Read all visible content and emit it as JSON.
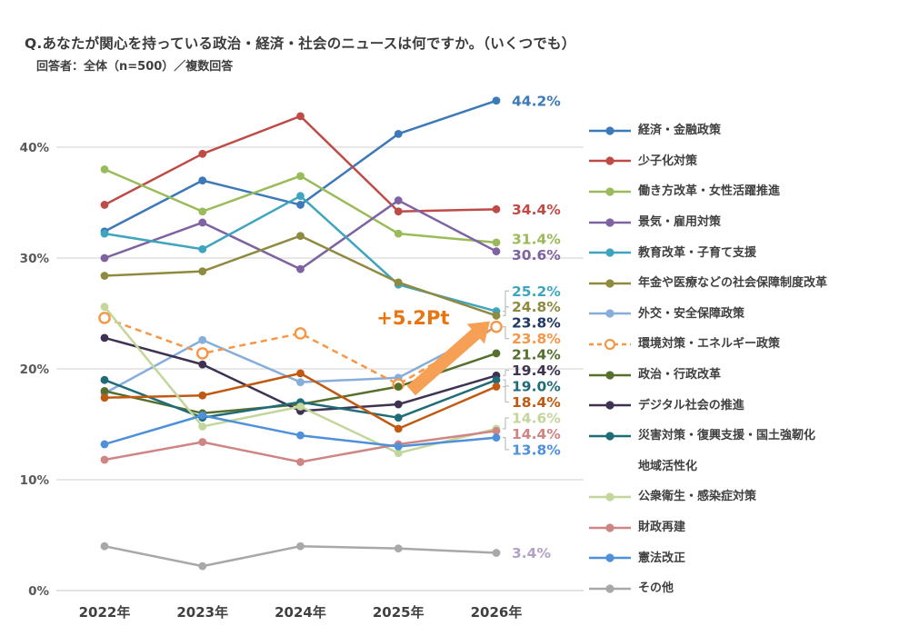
{
  "header": {
    "title": "Q.あなたが関心を持っている政治・経済・社会のニュースは何ですか。（いくつでも）",
    "subtitle": "回答者：全体（n=500）／複数回答"
  },
  "chart_data": {
    "type": "line",
    "x": [
      "2022年",
      "2023年",
      "2024年",
      "2025年",
      "2026年"
    ],
    "y_ticks": [
      0,
      10,
      20,
      30,
      40
    ],
    "y_tick_labels": [
      "0%",
      "10%",
      "20%",
      "30%",
      "40%"
    ],
    "ylim": [
      0,
      46
    ],
    "grid": "horizontal-only",
    "legend_position": "right",
    "colors": {
      "grid": "#d9d9d9",
      "axis_line": "#d0d0d0",
      "tick_label": "#595959",
      "x_label": "#404040",
      "leader_line": "#bfbfbf",
      "annotation_text": "#e8750f",
      "annotation_arrow": "#f5a054"
    },
    "series": [
      {
        "name": "経済・金融政策",
        "color": "#3c79b8",
        "values": [
          32.4,
          37.0,
          34.8,
          41.2,
          44.2
        ],
        "end_label": "44.2%"
      },
      {
        "name": "少子化対策",
        "color": "#bf4b47",
        "values": [
          34.8,
          39.4,
          42.8,
          34.2,
          34.4
        ],
        "end_label": "34.4%"
      },
      {
        "name": "働き方改革・女性活躍推進",
        "color": "#9abb59",
        "values": [
          38.0,
          34.2,
          37.4,
          32.2,
          31.4
        ],
        "end_label": "31.4%"
      },
      {
        "name": "景気・雇用対策",
        "color": "#7e62a1",
        "values": [
          30.0,
          33.2,
          29.0,
          35.2,
          30.6
        ],
        "end_label": "30.6%"
      },
      {
        "name": "教育改革・子育て支援",
        "color": "#3fa5bf",
        "values": [
          32.2,
          30.8,
          35.6,
          27.6,
          25.2
        ],
        "end_label": "25.2%"
      },
      {
        "name": "年金や医療などの社会保障制度改革",
        "color": "#8e8a40",
        "values": [
          28.4,
          28.8,
          32.0,
          27.8,
          24.8
        ],
        "end_label": "24.8%"
      },
      {
        "name": "外交・安全保障政策",
        "color": "#86aedc",
        "values": [
          17.8,
          22.6,
          18.8,
          19.2,
          23.8
        ],
        "end_label": "23.8%",
        "label_color": "#1f3864"
      },
      {
        "name": "環境対策・エネルギー政策",
        "color": "#f79646",
        "values": [
          24.6,
          21.4,
          23.2,
          18.6,
          23.8
        ],
        "end_label": "23.8%",
        "dashed": true,
        "open_marker": true
      },
      {
        "name": "政治・行政改革",
        "color": "#55702c",
        "values": [
          18.0,
          16.0,
          16.8,
          18.4,
          21.4
        ],
        "end_label": "21.4%"
      },
      {
        "name": "デジタル社会の推進",
        "color": "#3f3152",
        "values": [
          22.8,
          20.4,
          16.2,
          16.8,
          19.4
        ],
        "end_label": "19.4%"
      },
      {
        "name": "災害対策・復興支援・国土強靭化",
        "color": "#1f6b78",
        "values": [
          19.0,
          15.6,
          17.0,
          15.6,
          19.0
        ],
        "end_label": "19.0%"
      },
      {
        "name": "地域活性化",
        "color": "#c05a12",
        "values": [
          17.4,
          17.6,
          19.6,
          14.6,
          18.4
        ],
        "end_label": "18.4%",
        "legend_marker": false
      },
      {
        "name": "公衆衛生・感染症対策",
        "color": "#c3d69b",
        "values": [
          25.6,
          14.8,
          16.6,
          12.4,
          14.6
        ],
        "end_label": "14.6%"
      },
      {
        "name": "財政再建",
        "color": "#cf8583",
        "values": [
          11.8,
          13.4,
          11.6,
          13.2,
          14.4
        ],
        "end_label": "14.4%"
      },
      {
        "name": "憲法改正",
        "color": "#4e90d9",
        "values": [
          13.2,
          15.8,
          14.0,
          13.0,
          13.8
        ],
        "end_label": "13.8%"
      },
      {
        "name": "その他",
        "color": "#a8a8a8",
        "values": [
          4.0,
          2.2,
          4.0,
          3.8,
          3.4
        ],
        "end_label": "3.4%",
        "label_color": "#b3a2c7"
      }
    ],
    "annotation": {
      "text": "+5.2Pt"
    }
  }
}
